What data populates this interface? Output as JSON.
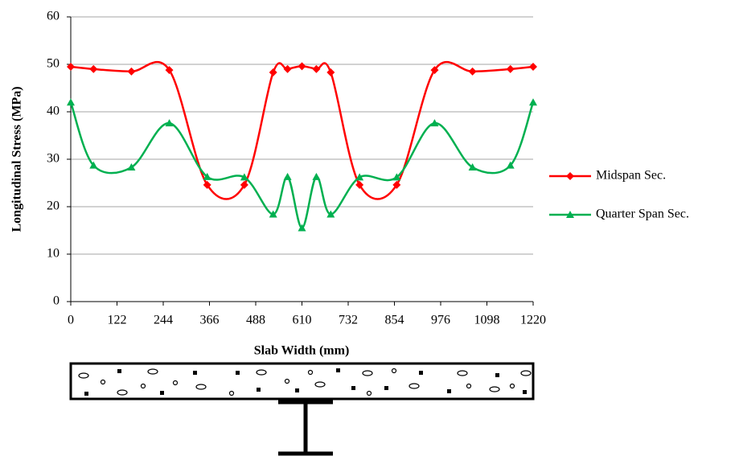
{
  "chart_data": {
    "type": "line",
    "smooth": true,
    "x_label": "Slab Width (mm)",
    "y_label": "Longitudinal Stress (MPa)",
    "x": [
      0,
      60,
      160,
      260,
      360,
      458,
      534,
      572,
      610,
      648,
      686,
      762,
      860,
      960,
      1060,
      1160,
      1220
    ],
    "series": [
      {
        "name": "Midspan Sec.",
        "color": "#ff0000",
        "marker": "diamond",
        "values": [
          49.5,
          49,
          48.5,
          48.8,
          24.6,
          24.6,
          48.3,
          49,
          49.6,
          49,
          48.3,
          24.6,
          24.6,
          48.8,
          48.5,
          49,
          49.5
        ]
      },
      {
        "name": "Quarter Span Sec.",
        "color": "#00b050",
        "marker": "triangle",
        "values": [
          42,
          28.7,
          28.3,
          37.6,
          26.3,
          26.2,
          18.4,
          26.3,
          15.5,
          26.3,
          18.4,
          26.2,
          26.2,
          37.6,
          28.3,
          28.7,
          42
        ]
      }
    ],
    "xlim": [
      0,
      1220
    ],
    "xticks": [
      0,
      122,
      244,
      366,
      488,
      610,
      732,
      854,
      976,
      1098,
      1220
    ],
    "ylim": [
      0,
      60
    ],
    "yticks": [
      0,
      10,
      20,
      30,
      40,
      50,
      60
    ],
    "grid": true,
    "legend": "right"
  }
}
